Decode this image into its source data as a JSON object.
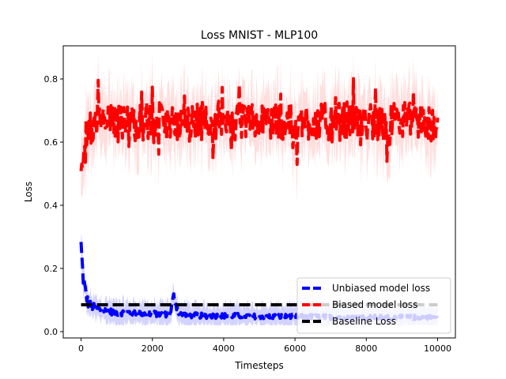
{
  "chart_data": {
    "type": "line",
    "title": "Loss MNIST - MLP100",
    "xlabel": "Timesteps",
    "ylabel": "Loss",
    "xlim": [
      -500,
      10500
    ],
    "ylim": [
      -0.02,
      0.905
    ],
    "x_ticks": [
      0,
      2000,
      4000,
      6000,
      8000,
      10000
    ],
    "y_ticks": [
      0.0,
      0.2,
      0.4,
      0.6,
      0.8
    ],
    "x_tick_labels": [
      "0",
      "2000",
      "4000",
      "6000",
      "8000",
      "10000"
    ],
    "y_tick_labels": [
      "0.0",
      "0.2",
      "0.4",
      "0.6",
      "0.8"
    ],
    "grid": false,
    "legend_position": "lower right",
    "series": [
      {
        "name": "Unbiased model loss",
        "color": "#0000ff",
        "linestyle": "dashed",
        "x": [
          0,
          50,
          100,
          150,
          200,
          300,
          500,
          750,
          1000,
          1250,
          1500,
          1750,
          2000,
          2250,
          2500,
          2600,
          2750,
          3000,
          3500,
          4000,
          4500,
          5000,
          5500,
          6000,
          6500,
          7000,
          7500,
          8000,
          8500,
          9000,
          9500,
          10000
        ],
        "values": [
          0.27,
          0.18,
          0.14,
          0.11,
          0.09,
          0.08,
          0.07,
          0.065,
          0.06,
          0.06,
          0.06,
          0.058,
          0.057,
          0.055,
          0.055,
          0.11,
          0.055,
          0.052,
          0.05,
          0.05,
          0.05,
          0.048,
          0.048,
          0.047,
          0.047,
          0.046,
          0.046,
          0.045,
          0.045,
          0.045,
          0.045,
          0.045
        ]
      },
      {
        "name": "Biased model loss",
        "color": "#ff0000",
        "linestyle": "dashed",
        "x": [
          0,
          25,
          50,
          100,
          200,
          500,
          1000,
          1500,
          2000,
          2500,
          3000,
          3500,
          4000,
          4500,
          5000,
          5500,
          6000,
          6500,
          7000,
          7500,
          8000,
          8500,
          9000,
          9500,
          10000
        ],
        "values": [
          0.5,
          0.49,
          0.55,
          0.62,
          0.65,
          0.66,
          0.66,
          0.66,
          0.67,
          0.66,
          0.66,
          0.67,
          0.67,
          0.66,
          0.66,
          0.67,
          0.66,
          0.67,
          0.66,
          0.67,
          0.66,
          0.66,
          0.67,
          0.66,
          0.66
        ]
      },
      {
        "name": "Baseline Loss",
        "color": "#000000",
        "linestyle": "dashed",
        "x": [
          0,
          10000
        ],
        "values": [
          0.085,
          0.085
        ]
      }
    ]
  }
}
